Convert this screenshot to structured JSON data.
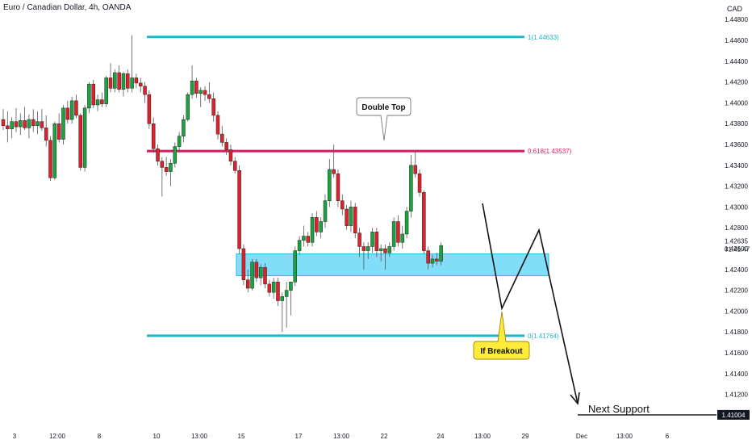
{
  "header": {
    "title": "Euro / Canadian Dollar, 4h, OANDA",
    "currency": "CAD"
  },
  "colors": {
    "up": "#26a69a",
    "upFill": "#1aa33f",
    "down": "#e0212c",
    "fib": "#22b7c7",
    "fibMid": "#d81b60",
    "zone": "#4dd0f5"
  },
  "chart_data": {
    "type": "candlestick",
    "yaxis": {
      "ticks": [
        "1.44800",
        "1.44600",
        "1.44400",
        "1.44200",
        "1.44000",
        "1.43800",
        "1.43600",
        "1.43400",
        "1.43200",
        "1.43000",
        "1.42800",
        "1.42600",
        "1.42400",
        "1.42200",
        "1.42000",
        "1.41800",
        "1.41600",
        "1.41400",
        "1.41200"
      ],
      "range": [
        1.4076,
        1.4493
      ]
    },
    "xaxis": {
      "ticks": [
        "3",
        "12:00",
        "8",
        "10",
        "13:00",
        "15",
        "17",
        "13:00",
        "22",
        "24",
        "13:00",
        "29",
        "Dec",
        "13:00",
        "6"
      ]
    },
    "price": {
      "value": "1.42635",
      "countdown": "01:41:47"
    },
    "fib_levels": [
      {
        "label": "1(1.44633)",
        "value": 1.44633
      },
      {
        "label": "0.618(1.43537)",
        "value": 1.43537
      },
      {
        "label": "0(1.41764)",
        "value": 1.41764
      }
    ],
    "support_zone": {
      "low": 1.4234,
      "high": 1.4255
    },
    "next_support": {
      "label": "Next Support",
      "value": 1.41004,
      "tag": "1.41004"
    },
    "annotations": [
      {
        "label": "Double Top"
      },
      {
        "label": "If Breakout"
      }
    ],
    "candles": [
      [
        1.4384,
        1.4394,
        1.4374,
        1.4378
      ],
      [
        1.4378,
        1.4392,
        1.4362,
        1.4375
      ],
      [
        1.4375,
        1.4386,
        1.4366,
        1.4382
      ],
      [
        1.4382,
        1.4395,
        1.4372,
        1.4377
      ],
      [
        1.4377,
        1.439,
        1.4369,
        1.4383
      ],
      [
        1.4383,
        1.4396,
        1.4374,
        1.4376
      ],
      [
        1.4376,
        1.4389,
        1.4366,
        1.4384
      ],
      [
        1.4384,
        1.4394,
        1.4372,
        1.4378
      ],
      [
        1.4378,
        1.4392,
        1.437,
        1.4382
      ],
      [
        1.4382,
        1.4394,
        1.4373,
        1.4376
      ],
      [
        1.4376,
        1.4388,
        1.4358,
        1.4364
      ],
      [
        1.4364,
        1.4368,
        1.4325,
        1.4328
      ],
      [
        1.4328,
        1.4382,
        1.4326,
        1.438
      ],
      [
        1.438,
        1.439,
        1.4362,
        1.4365
      ],
      [
        1.4365,
        1.4398,
        1.436,
        1.4395
      ],
      [
        1.4395,
        1.4402,
        1.438,
        1.4384
      ],
      [
        1.4384,
        1.4406,
        1.438,
        1.4402
      ],
      [
        1.4402,
        1.4408,
        1.4385,
        1.4388
      ],
      [
        1.4388,
        1.439,
        1.4335,
        1.4338
      ],
      [
        1.4338,
        1.4398,
        1.4334,
        1.4395
      ],
      [
        1.4395,
        1.442,
        1.439,
        1.4418
      ],
      [
        1.4418,
        1.4422,
        1.4395,
        1.4398
      ],
      [
        1.4398,
        1.4408,
        1.4392,
        1.4403
      ],
      [
        1.4403,
        1.441,
        1.4396,
        1.4399
      ],
      [
        1.4399,
        1.4426,
        1.4396,
        1.4424
      ],
      [
        1.4424,
        1.4438,
        1.441,
        1.4414
      ],
      [
        1.4414,
        1.4432,
        1.441,
        1.4429
      ],
      [
        1.4429,
        1.4436,
        1.441,
        1.4413
      ],
      [
        1.4413,
        1.443,
        1.4406,
        1.4428
      ],
      [
        1.4428,
        1.4432,
        1.441,
        1.4414
      ],
      [
        1.4414,
        1.4465,
        1.441,
        1.4424
      ],
      [
        1.4424,
        1.4428,
        1.4414,
        1.4419
      ],
      [
        1.4419,
        1.4424,
        1.441,
        1.4416
      ],
      [
        1.4416,
        1.442,
        1.44,
        1.4408
      ],
      [
        1.4408,
        1.4412,
        1.4375,
        1.438
      ],
      [
        1.438,
        1.4386,
        1.4352,
        1.4356
      ],
      [
        1.4356,
        1.436,
        1.434,
        1.4344
      ],
      [
        1.4344,
        1.4348,
        1.431,
        1.4338
      ],
      [
        1.4338,
        1.4348,
        1.433,
        1.4334
      ],
      [
        1.4334,
        1.4346,
        1.432,
        1.4342
      ],
      [
        1.4342,
        1.4362,
        1.4338,
        1.4358
      ],
      [
        1.4358,
        1.4372,
        1.4352,
        1.4368
      ],
      [
        1.4368,
        1.4388,
        1.4362,
        1.4384
      ],
      [
        1.4384,
        1.441,
        1.4382,
        1.4408
      ],
      [
        1.4408,
        1.4436,
        1.4404,
        1.4421
      ],
      [
        1.4421,
        1.4424,
        1.4405,
        1.4409
      ],
      [
        1.4409,
        1.4415,
        1.4396,
        1.4412
      ],
      [
        1.4412,
        1.4416,
        1.4402,
        1.4408
      ],
      [
        1.4408,
        1.442,
        1.44,
        1.4404
      ],
      [
        1.4404,
        1.441,
        1.4382,
        1.4388
      ],
      [
        1.4388,
        1.4392,
        1.4365,
        1.437
      ],
      [
        1.437,
        1.4378,
        1.4358,
        1.4362
      ],
      [
        1.4362,
        1.4366,
        1.435,
        1.4355
      ],
      [
        1.4355,
        1.436,
        1.434,
        1.4344
      ],
      [
        1.4344,
        1.4348,
        1.4332,
        1.4335
      ],
      [
        1.4335,
        1.434,
        1.4255,
        1.426
      ],
      [
        1.426,
        1.4264,
        1.4225,
        1.423
      ],
      [
        1.423,
        1.424,
        1.4218,
        1.4222
      ],
      [
        1.4222,
        1.425,
        1.422,
        1.4247
      ],
      [
        1.4247,
        1.425,
        1.4228,
        1.4232
      ],
      [
        1.4232,
        1.4245,
        1.4225,
        1.4242
      ],
      [
        1.4242,
        1.4246,
        1.4222,
        1.4226
      ],
      [
        1.4226,
        1.423,
        1.4214,
        1.4218
      ],
      [
        1.4218,
        1.4232,
        1.4212,
        1.4228
      ],
      [
        1.4228,
        1.4232,
        1.4205,
        1.421
      ],
      [
        1.421,
        1.4218,
        1.418,
        1.4214
      ],
      [
        1.4214,
        1.4228,
        1.4184,
        1.422
      ],
      [
        1.422,
        1.4224,
        1.4196,
        1.4228
      ],
      [
        1.4228,
        1.4262,
        1.4224,
        1.4258
      ],
      [
        1.4258,
        1.4272,
        1.4254,
        1.4268
      ],
      [
        1.4268,
        1.4282,
        1.4262,
        1.4272
      ],
      [
        1.4272,
        1.4276,
        1.4262,
        1.4266
      ],
      [
        1.4266,
        1.4294,
        1.4262,
        1.429
      ],
      [
        1.429,
        1.4296,
        1.4272,
        1.4276
      ],
      [
        1.4276,
        1.429,
        1.427,
        1.4286
      ],
      [
        1.4286,
        1.4312,
        1.428,
        1.4306
      ],
      [
        1.4306,
        1.4346,
        1.43,
        1.4336
      ],
      [
        1.4336,
        1.436,
        1.4328,
        1.4332
      ],
      [
        1.4332,
        1.4336,
        1.43,
        1.4306
      ],
      [
        1.4306,
        1.4312,
        1.4292,
        1.4298
      ],
      [
        1.4298,
        1.4302,
        1.4278,
        1.4282
      ],
      [
        1.4282,
        1.4306,
        1.4276,
        1.43
      ],
      [
        1.43,
        1.4304,
        1.427,
        1.4275
      ],
      [
        1.4275,
        1.428,
        1.4252,
        1.4262
      ],
      [
        1.4262,
        1.4266,
        1.424,
        1.4258
      ],
      [
        1.4258,
        1.4266,
        1.425,
        1.4262
      ],
      [
        1.4262,
        1.428,
        1.4256,
        1.4276
      ],
      [
        1.4276,
        1.428,
        1.4252,
        1.4258
      ],
      [
        1.4258,
        1.4264,
        1.4248,
        1.426
      ],
      [
        1.426,
        1.4264,
        1.424,
        1.4256
      ],
      [
        1.4256,
        1.4266,
        1.4252,
        1.4262
      ],
      [
        1.4262,
        1.429,
        1.4258,
        1.4286
      ],
      [
        1.4286,
        1.4292,
        1.4262,
        1.4266
      ],
      [
        1.4266,
        1.4282,
        1.426,
        1.4274
      ],
      [
        1.4274,
        1.43,
        1.427,
        1.4296
      ],
      [
        1.4296,
        1.435,
        1.429,
        1.434
      ],
      [
        1.434,
        1.4354,
        1.4328,
        1.4332
      ],
      [
        1.4332,
        1.4336,
        1.431,
        1.4314
      ],
      [
        1.4314,
        1.4316,
        1.4255,
        1.4258
      ],
      [
        1.4258,
        1.4262,
        1.424,
        1.4246
      ],
      [
        1.4246,
        1.4254,
        1.4242,
        1.425
      ],
      [
        1.425,
        1.4256,
        1.4244,
        1.4248
      ],
      [
        1.4248,
        1.4266,
        1.4244,
        1.4263
      ]
    ]
  }
}
